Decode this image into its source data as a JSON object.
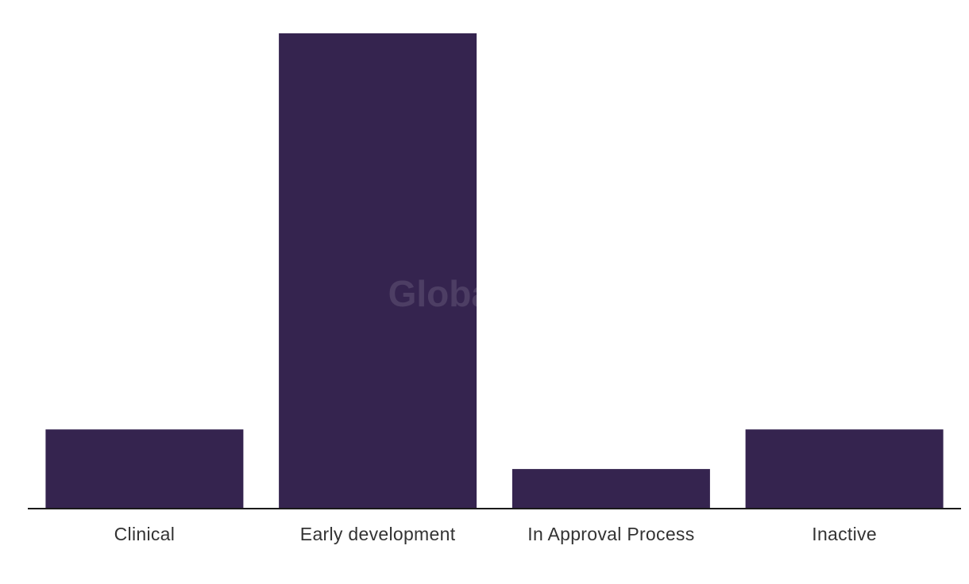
{
  "chart_data": {
    "type": "bar",
    "categories": [
      "Clinical",
      "Early development",
      "In Approval Process",
      "Inactive"
    ],
    "values": [
      2,
      12,
      1,
      2
    ],
    "title": "",
    "xlabel": "",
    "ylabel": "",
    "ylim": [
      0,
      12
    ],
    "grid": false,
    "legend": "none",
    "bar_color": "#35244f",
    "axis_color": "#1a1a1a"
  },
  "watermark": "GlobalData"
}
